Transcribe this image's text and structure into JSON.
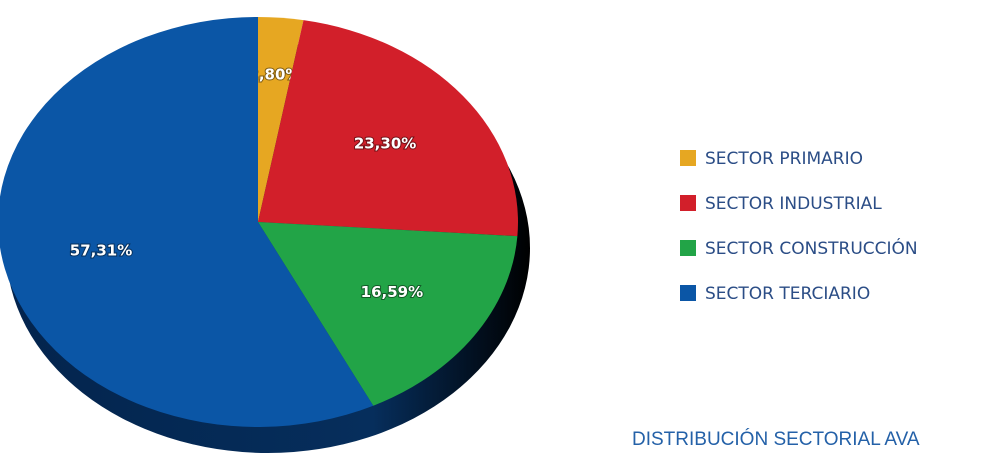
{
  "chart_data": {
    "type": "pie",
    "categories": [
      "SECTOR PRIMARIO",
      "SECTOR INDUSTRIAL",
      "SECTOR CONSTRUCCIÓN",
      "SECTOR TERCIARIO"
    ],
    "values": [
      2.8,
      23.3,
      16.59,
      57.31
    ],
    "value_labels": [
      "2,80%",
      "23,30%",
      "16,59%",
      "57,31%"
    ],
    "colors": [
      "#e6a722",
      "#d21f2a",
      "#22a447",
      "#0b56a6"
    ],
    "legend": "right",
    "caption": "DISTRIBUCIÓN SECTORIAL AVA"
  }
}
